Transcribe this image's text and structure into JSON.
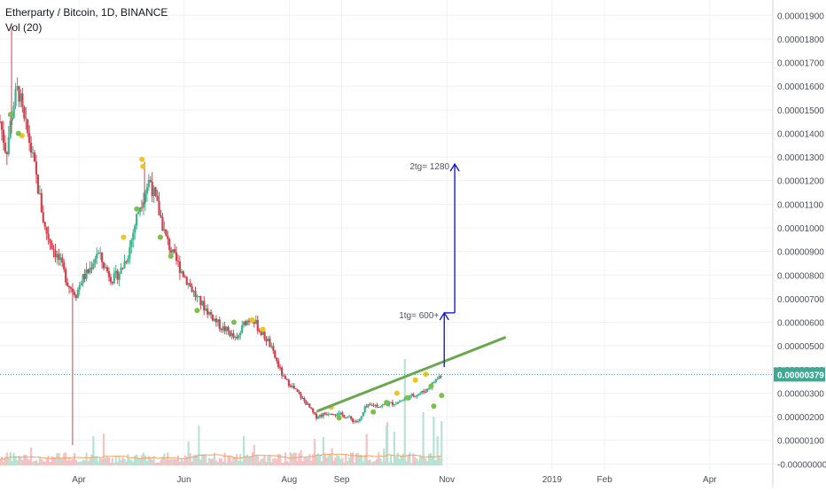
{
  "header": {
    "title": "Etherparty / Bitcoin, 1D, BINANCE",
    "volume_label": "Vol (20)"
  },
  "colors": {
    "up": "#3bb28a",
    "down": "#d3414e",
    "up_vol": "#b7e3d4",
    "down_vol": "#f4c2c5",
    "grid": "#eef1f5",
    "axis_text": "#4a4f5c",
    "price_line": "#3fa892",
    "trend_line": "#6aa84f",
    "arrow": "#1c1ccf",
    "vol_ma": "#f5a25d",
    "dot_green": "#7cc04a",
    "dot_yellow": "#f0c419"
  },
  "chart_data": {
    "type": "candlestick",
    "title": "Etherparty / Bitcoin, 1D, BINANCE",
    "x_labels": [
      "Apr",
      "Jun",
      "Aug",
      "Sep",
      "Nov",
      "2019",
      "Feb",
      "Apr"
    ],
    "x_label_months": [
      3,
      5,
      7,
      8,
      10,
      12,
      13,
      15
    ],
    "x_range_months": [
      1.5,
      16.2
    ],
    "y_ticks": [
      "0.00001900",
      "0.00001800",
      "0.00001700",
      "0.00001600",
      "0.00001500",
      "0.00001400",
      "0.00001300",
      "0.00001200",
      "0.00001100",
      "0.00001000",
      "0.00000900",
      "0.00000800",
      "0.00000700",
      "0.00000600",
      "0.00000500",
      "0.00000400",
      "0.00000300",
      "0.00000200",
      "0.00000100",
      "-0.00000000"
    ],
    "y_tick_values": [
      1900,
      1800,
      1700,
      1600,
      1500,
      1400,
      1300,
      1200,
      1100,
      1000,
      900,
      800,
      700,
      600,
      500,
      400,
      300,
      200,
      100,
      0
    ],
    "y_range": [
      -25,
      1965
    ],
    "y_unit_note": "values in satoshi (1e-8 BTC)",
    "last_price": "0.00000379",
    "last_price_value": 379,
    "price_path": [
      {
        "m": 1.5,
        "p": 1450
      },
      {
        "m": 1.62,
        "p": 1320
      },
      {
        "m": 1.75,
        "p": 1520
      },
      {
        "m": 1.85,
        "p": 1590
      },
      {
        "m": 1.95,
        "p": 1450
      },
      {
        "m": 2.05,
        "p": 1380
      },
      {
        "m": 2.2,
        "p": 1200
      },
      {
        "m": 2.35,
        "p": 1000
      },
      {
        "m": 2.5,
        "p": 920
      },
      {
        "m": 2.65,
        "p": 850
      },
      {
        "m": 2.8,
        "p": 760
      },
      {
        "m": 2.95,
        "p": 720
      },
      {
        "m": 3.05,
        "p": 780
      },
      {
        "m": 3.2,
        "p": 820
      },
      {
        "m": 3.35,
        "p": 900
      },
      {
        "m": 3.5,
        "p": 830
      },
      {
        "m": 3.65,
        "p": 780
      },
      {
        "m": 3.8,
        "p": 820
      },
      {
        "m": 3.95,
        "p": 900
      },
      {
        "m": 4.05,
        "p": 1000
      },
      {
        "m": 4.15,
        "p": 1090
      },
      {
        "m": 4.25,
        "p": 1150
      },
      {
        "m": 4.35,
        "p": 1210
      },
      {
        "m": 4.45,
        "p": 1120
      },
      {
        "m": 4.55,
        "p": 1050
      },
      {
        "m": 4.65,
        "p": 960
      },
      {
        "m": 4.8,
        "p": 880
      },
      {
        "m": 4.95,
        "p": 820
      },
      {
        "m": 5.1,
        "p": 760
      },
      {
        "m": 5.25,
        "p": 700
      },
      {
        "m": 5.4,
        "p": 660
      },
      {
        "m": 5.55,
        "p": 620
      },
      {
        "m": 5.7,
        "p": 580
      },
      {
        "m": 5.85,
        "p": 560
      },
      {
        "m": 6.0,
        "p": 520
      },
      {
        "m": 6.15,
        "p": 600
      },
      {
        "m": 6.3,
        "p": 620
      },
      {
        "m": 6.45,
        "p": 560
      },
      {
        "m": 6.6,
        "p": 520
      },
      {
        "m": 6.75,
        "p": 440
      },
      {
        "m": 6.9,
        "p": 360
      },
      {
        "m": 7.05,
        "p": 330
      },
      {
        "m": 7.2,
        "p": 290
      },
      {
        "m": 7.35,
        "p": 250
      },
      {
        "m": 7.5,
        "p": 200
      },
      {
        "m": 7.65,
        "p": 210
      },
      {
        "m": 7.8,
        "p": 220
      },
      {
        "m": 7.95,
        "p": 210
      },
      {
        "m": 8.1,
        "p": 200
      },
      {
        "m": 8.25,
        "p": 180
      },
      {
        "m": 8.35,
        "p": 185
      },
      {
        "m": 8.45,
        "p": 240
      },
      {
        "m": 8.6,
        "p": 250
      },
      {
        "m": 8.75,
        "p": 245
      },
      {
        "m": 8.9,
        "p": 255
      },
      {
        "m": 9.05,
        "p": 260
      },
      {
        "m": 9.2,
        "p": 275
      },
      {
        "m": 9.35,
        "p": 290
      },
      {
        "m": 9.5,
        "p": 300
      },
      {
        "m": 9.65,
        "p": 320
      },
      {
        "m": 9.8,
        "p": 360
      },
      {
        "m": 9.9,
        "p": 379
      }
    ],
    "spike_wicks": [
      {
        "m": 1.72,
        "high": 1850,
        "low": 1400
      },
      {
        "m": 2.88,
        "high": 730,
        "low": 80
      },
      {
        "m": 4.25,
        "high": 1280,
        "low": 1100
      }
    ],
    "trend_line": [
      {
        "m": 7.55,
        "p": 225
      },
      {
        "m": 11.1,
        "p": 535
      }
    ],
    "dots": [
      {
        "m": 1.92,
        "p": 1390,
        "c": "dot_yellow"
      },
      {
        "m": 1.85,
        "p": 1400,
        "c": "dot_green"
      },
      {
        "m": 1.7,
        "p": 1480,
        "c": "dot_green"
      },
      {
        "m": 3.85,
        "p": 960,
        "c": "dot_yellow"
      },
      {
        "m": 4.1,
        "p": 1080,
        "c": "dot_green"
      },
      {
        "m": 4.2,
        "p": 1290,
        "c": "dot_yellow"
      },
      {
        "m": 4.22,
        "p": 1260,
        "c": "dot_yellow"
      },
      {
        "m": 4.55,
        "p": 960,
        "c": "dot_green"
      },
      {
        "m": 4.75,
        "p": 880,
        "c": "dot_green"
      },
      {
        "m": 5.25,
        "p": 650,
        "c": "dot_green"
      },
      {
        "m": 5.95,
        "p": 600,
        "c": "dot_green"
      },
      {
        "m": 6.5,
        "p": 570,
        "c": "dot_yellow"
      },
      {
        "m": 6.3,
        "p": 610,
        "c": "dot_yellow"
      },
      {
        "m": 7.8,
        "p": 240,
        "c": "dot_yellow"
      },
      {
        "m": 7.95,
        "p": 195,
        "c": "dot_green"
      },
      {
        "m": 8.6,
        "p": 220,
        "c": "dot_green"
      },
      {
        "m": 8.85,
        "p": 260,
        "c": "dot_green"
      },
      {
        "m": 9.05,
        "p": 300,
        "c": "dot_yellow"
      },
      {
        "m": 9.25,
        "p": 280,
        "c": "dot_green"
      },
      {
        "m": 9.4,
        "p": 355,
        "c": "dot_yellow"
      },
      {
        "m": 9.6,
        "p": 380,
        "c": "dot_yellow"
      },
      {
        "m": 9.7,
        "p": 330,
        "c": "dot_green"
      },
      {
        "m": 9.75,
        "p": 245,
        "c": "dot_green"
      },
      {
        "m": 9.9,
        "p": 290,
        "c": "dot_green"
      }
    ],
    "targets": [
      {
        "label": "1tg= 600+",
        "m": 9.95,
        "from": 410,
        "to": 640
      },
      {
        "label": "2tg= 1280",
        "m": 10.15,
        "from": 640,
        "to": 1270
      }
    ]
  }
}
